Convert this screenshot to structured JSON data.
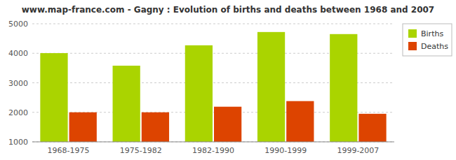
{
  "chart_data": {
    "type": "bar",
    "title": "www.map-france.com - Gagny : Evolution of births and deaths between 1968 and 2007",
    "categories": [
      "1968-1975",
      "1975-1982",
      "1982-1990",
      "1990-1999",
      "1999-2007"
    ],
    "series": [
      {
        "name": "Births",
        "color": "#aad400",
        "values": [
          4005,
          3580,
          4270,
          4720,
          4650
        ]
      },
      {
        "name": "Deaths",
        "color": "#dd4400",
        "values": [
          2000,
          2000,
          2190,
          2380,
          1950
        ]
      }
    ],
    "ylim": [
      1000,
      5000
    ],
    "yticks": [
      1000,
      2000,
      3000,
      4000,
      5000
    ],
    "grid": true,
    "legend": "upper right"
  }
}
